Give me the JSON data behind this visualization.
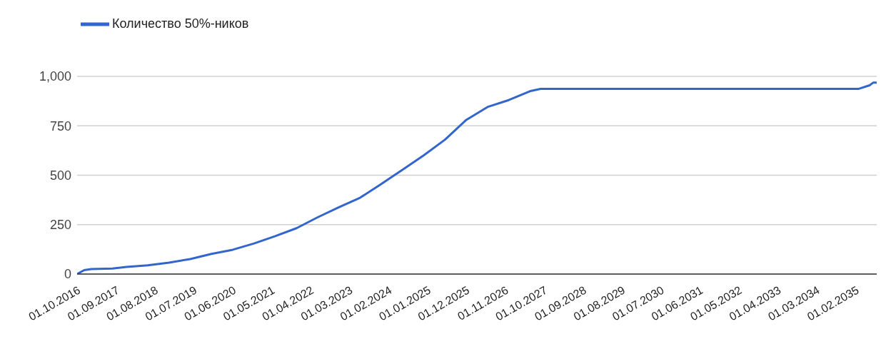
{
  "chart_data": {
    "type": "line",
    "legend": "top left",
    "grid": "y",
    "marker": "none",
    "line_style": "solid",
    "x": [
      "2016-10",
      "2016-12",
      "2017-02",
      "2017-08",
      "2017-12",
      "2018-06",
      "2018-12",
      "2019-06",
      "2019-12",
      "2020-06",
      "2020-12",
      "2021-06",
      "2021-12",
      "2022-06",
      "2022-12",
      "2023-06",
      "2023-12",
      "2024-06",
      "2024-12",
      "2025-06",
      "2025-12",
      "2026-06",
      "2026-12",
      "2027-06",
      "2027-09",
      "2035-03",
      "2035-06",
      "2035-07",
      "2035-08"
    ],
    "series": [
      {
        "name": "Количество 50%-ников",
        "color": "#3366cc",
        "values": [
          0,
          20,
          25,
          28,
          36,
          44,
          58,
          76,
          102,
          123,
          155,
          192,
          232,
          287,
          338,
          386,
          456,
          528,
          601,
          680,
          780,
          845,
          880,
          925,
          937,
          937,
          955,
          968,
          968
        ]
      }
    ],
    "xlim": [
      "2016-10",
      "2035-08"
    ],
    "xticks": [
      {
        "value": "2016-10-01",
        "label": "01.10.2016"
      },
      {
        "value": "2017-09-01",
        "label": "01.09.2017"
      },
      {
        "value": "2018-08-01",
        "label": "01.08.2018"
      },
      {
        "value": "2019-07-01",
        "label": "01.07.2019"
      },
      {
        "value": "2020-06-01",
        "label": "01.06.2020"
      },
      {
        "value": "2021-05-01",
        "label": "01.05.2021"
      },
      {
        "value": "2022-04-01",
        "label": "01.04.2022"
      },
      {
        "value": "2023-03-01",
        "label": "01.03.2023"
      },
      {
        "value": "2024-02-01",
        "label": "01.02.2024"
      },
      {
        "value": "2025-01-01",
        "label": "01.01.2025"
      },
      {
        "value": "2025-12-01",
        "label": "01.12.2025"
      },
      {
        "value": "2026-11-01",
        "label": "01.11.2026"
      },
      {
        "value": "2027-10-01",
        "label": "01.10.2027"
      },
      {
        "value": "2028-09-01",
        "label": "01.09.2028"
      },
      {
        "value": "2029-08-01",
        "label": "01.08.2029"
      },
      {
        "value": "2030-07-01",
        "label": "01.07.2030"
      },
      {
        "value": "2031-06-01",
        "label": "01.06.2031"
      },
      {
        "value": "2032-05-01",
        "label": "01.05.2032"
      },
      {
        "value": "2033-04-01",
        "label": "01.04.2033"
      },
      {
        "value": "2034-03-01",
        "label": "01.03.2034"
      },
      {
        "value": "2035-02-01",
        "label": "01.02.2035"
      }
    ],
    "ylim": [
      0,
      1000
    ],
    "yticks": [
      0,
      250,
      500,
      750,
      {
        "value": 1000,
        "label": "1,000"
      }
    ]
  }
}
